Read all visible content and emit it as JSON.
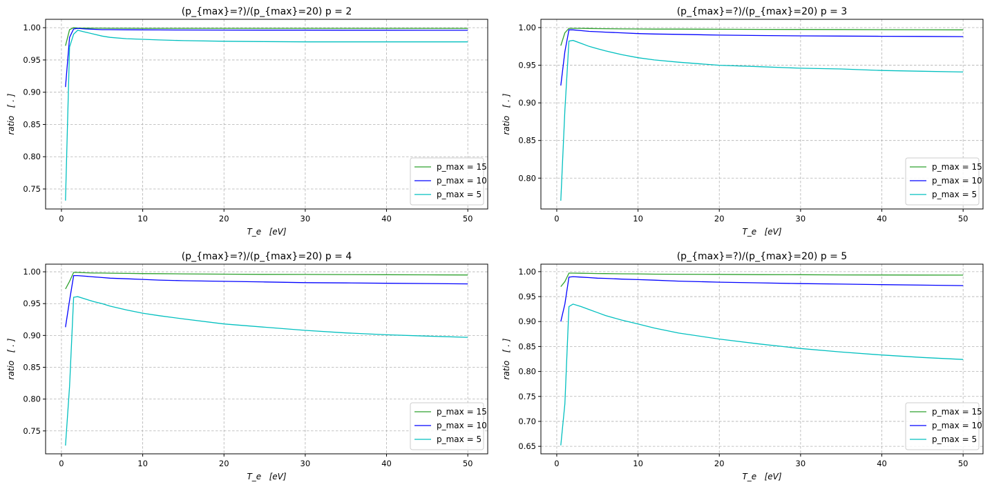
{
  "chart_data": [
    {
      "type": "line",
      "title": "(p_{max}=?)/(p_{max}=20)   p = 2",
      "xlabel": "T_e   [eV]",
      "ylabel": "ratio   [ . ]",
      "xlim": [
        -1.95,
        52.45
      ],
      "ylim": [
        0.719,
        1.013
      ],
      "xticks": [
        0,
        10,
        20,
        30,
        40,
        50
      ],
      "yticks": [
        "0.75",
        "0.80",
        "0.85",
        "0.90",
        "0.95",
        "1.00"
      ],
      "grid": true,
      "legend": "bottom-right",
      "x": [
        0.5,
        1,
        1.5,
        2,
        3,
        4,
        5,
        6,
        8,
        10,
        12,
        15,
        20,
        25,
        30,
        35,
        40,
        45,
        50
      ],
      "series": [
        {
          "name": "p_max = 15",
          "color": "#2ca02c",
          "values": [
            0.972,
            0.997,
            1.0,
            0.9995,
            0.9993,
            0.9992,
            0.9992,
            0.9991,
            0.9991,
            0.999,
            0.999,
            0.999,
            0.999,
            0.999,
            0.999,
            0.999,
            0.999,
            0.999,
            0.999
          ]
        },
        {
          "name": "p_max = 10",
          "color": "#0000ff",
          "values": [
            0.908,
            0.985,
            0.998,
            0.999,
            0.998,
            0.9975,
            0.997,
            0.997,
            0.9968,
            0.9966,
            0.9965,
            0.9964,
            0.9963,
            0.9962,
            0.9962,
            0.9961,
            0.9961,
            0.996,
            0.996
          ]
        },
        {
          "name": "p_max = 5",
          "color": "#00bfbf",
          "values": [
            0.732,
            0.97,
            0.99,
            0.996,
            0.993,
            0.99,
            0.987,
            0.985,
            0.983,
            0.982,
            0.981,
            0.98,
            0.979,
            0.9785,
            0.978,
            0.978,
            0.978,
            0.978,
            0.978
          ]
        }
      ]
    },
    {
      "type": "line",
      "title": "(p_{max}=?)/(p_{max}=20)   p = 3",
      "xlabel": "T_e   [eV]",
      "ylabel": "ratio   [ . ]",
      "xlim": [
        -1.95,
        52.45
      ],
      "ylim": [
        0.759,
        1.011
      ],
      "xticks": [
        0,
        10,
        20,
        30,
        40,
        50
      ],
      "yticks": [
        "0.80",
        "0.85",
        "0.90",
        "0.95",
        "1.00"
      ],
      "grid": true,
      "legend": "bottom-right",
      "x": [
        0.5,
        1,
        1.5,
        2,
        3,
        4,
        5,
        6,
        8,
        10,
        12,
        15,
        20,
        25,
        30,
        35,
        40,
        45,
        50
      ],
      "series": [
        {
          "name": "p_max = 15",
          "color": "#2ca02c",
          "values": [
            0.976,
            0.993,
            0.999,
            0.999,
            0.999,
            0.9988,
            0.9986,
            0.9985,
            0.9983,
            0.9982,
            0.998,
            0.998,
            0.9978,
            0.9976,
            0.9975,
            0.9974,
            0.9973,
            0.9972,
            0.997
          ]
        },
        {
          "name": "p_max = 10",
          "color": "#0000ff",
          "values": [
            0.923,
            0.968,
            0.997,
            0.997,
            0.996,
            0.995,
            0.9945,
            0.994,
            0.993,
            0.992,
            0.9915,
            0.991,
            0.99,
            0.9895,
            0.989,
            0.9887,
            0.9885,
            0.9883,
            0.988
          ]
        },
        {
          "name": "p_max = 5",
          "color": "#00bfbf",
          "values": [
            0.77,
            0.89,
            0.982,
            0.983,
            0.979,
            0.975,
            0.972,
            0.969,
            0.964,
            0.96,
            0.957,
            0.954,
            0.95,
            0.948,
            0.946,
            0.945,
            0.943,
            0.942,
            0.941
          ]
        }
      ]
    },
    {
      "type": "line",
      "title": "(p_{max}=?)/(p_{max}=20)   p = 4",
      "xlabel": "T_e   [eV]",
      "ylabel": "ratio   [ . ]",
      "xlim": [
        -1.95,
        52.45
      ],
      "ylim": [
        0.714,
        1.012
      ],
      "xticks": [
        0,
        10,
        20,
        30,
        40,
        50
      ],
      "yticks": [
        "0.75",
        "0.80",
        "0.85",
        "0.90",
        "0.95",
        "1.00"
      ],
      "grid": true,
      "legend": "bottom-right",
      "x": [
        0.5,
        1,
        1.5,
        2,
        3,
        4,
        5,
        6,
        8,
        10,
        12,
        15,
        20,
        25,
        30,
        35,
        40,
        45,
        50
      ],
      "series": [
        {
          "name": "p_max = 15",
          "color": "#2ca02c",
          "values": [
            0.973,
            0.985,
            0.999,
            0.999,
            0.9985,
            0.998,
            0.998,
            0.9978,
            0.9975,
            0.9972,
            0.997,
            0.9967,
            0.9963,
            0.996,
            0.9958,
            0.9956,
            0.9954,
            0.9952,
            0.995
          ]
        },
        {
          "name": "p_max = 10",
          "color": "#0000ff",
          "values": [
            0.913,
            0.955,
            0.994,
            0.994,
            0.993,
            0.992,
            0.991,
            0.99,
            0.989,
            0.988,
            0.987,
            0.986,
            0.985,
            0.984,
            0.983,
            0.9825,
            0.982,
            0.9815,
            0.981
          ]
        },
        {
          "name": "p_max = 5",
          "color": "#00bfbf",
          "values": [
            0.727,
            0.82,
            0.96,
            0.961,
            0.957,
            0.953,
            0.95,
            0.946,
            0.94,
            0.935,
            0.931,
            0.926,
            0.918,
            0.913,
            0.908,
            0.904,
            0.901,
            0.899,
            0.897
          ]
        }
      ]
    },
    {
      "type": "line",
      "title": "(p_{max}=?)/(p_{max}=20)   p = 5",
      "xlabel": "T_e   [eV]",
      "ylabel": "ratio   [ . ]",
      "xlim": [
        -1.95,
        52.45
      ],
      "ylim": [
        0.635,
        1.015
      ],
      "xticks": [
        0,
        10,
        20,
        30,
        40,
        50
      ],
      "yticks": [
        "0.65",
        "0.70",
        "0.75",
        "0.80",
        "0.85",
        "0.90",
        "0.95",
        "1.00"
      ],
      "grid": true,
      "legend": "bottom-right",
      "x": [
        0.5,
        1,
        1.5,
        2,
        3,
        4,
        5,
        6,
        8,
        10,
        12,
        15,
        20,
        25,
        30,
        35,
        40,
        45,
        50
      ],
      "series": [
        {
          "name": "p_max = 15",
          "color": "#2ca02c",
          "values": [
            0.97,
            0.98,
            0.997,
            0.997,
            0.9968,
            0.9965,
            0.9962,
            0.996,
            0.9957,
            0.9955,
            0.995,
            0.9948,
            0.9945,
            0.994,
            0.9938,
            0.9935,
            0.9933,
            0.9932,
            0.993
          ]
        },
        {
          "name": "p_max = 10",
          "color": "#0000ff",
          "values": [
            0.9,
            0.935,
            0.989,
            0.99,
            0.989,
            0.988,
            0.987,
            0.9865,
            0.985,
            0.984,
            0.983,
            0.981,
            0.979,
            0.9775,
            0.976,
            0.975,
            0.974,
            0.973,
            0.972
          ]
        },
        {
          "name": "p_max = 5",
          "color": "#00bfbf",
          "values": [
            0.652,
            0.735,
            0.93,
            0.935,
            0.93,
            0.924,
            0.918,
            0.912,
            0.903,
            0.895,
            0.887,
            0.877,
            0.865,
            0.855,
            0.846,
            0.839,
            0.833,
            0.828,
            0.824
          ]
        }
      ]
    }
  ]
}
